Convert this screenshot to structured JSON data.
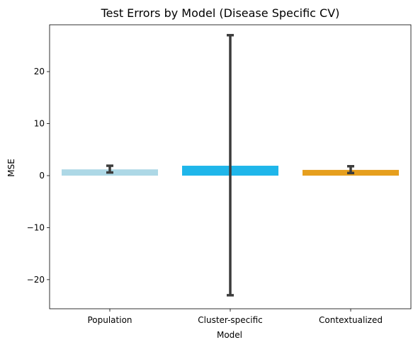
{
  "chart_data": {
    "type": "bar",
    "title": "Test Errors by Model (Disease Specific CV)",
    "xlabel": "Model",
    "ylabel": "MSE",
    "categories": [
      "Population",
      "Cluster-specific",
      "Contextualized"
    ],
    "values": [
      1.2,
      1.9,
      1.1
    ],
    "error_low": [
      0.6,
      -23.0,
      0.5
    ],
    "error_high": [
      1.9,
      27.0,
      1.8
    ],
    "colors": [
      "#add8e6",
      "#1fb6ea",
      "#e69f1e"
    ],
    "error_color": "#3c3c3c",
    "ylim": [
      -25.6,
      29.0
    ],
    "yticks": [
      -20,
      -10,
      0,
      10,
      20
    ],
    "ytick_labels": [
      "−20",
      "−10",
      "0",
      "10",
      "20"
    ],
    "grid": false,
    "legend": "none"
  }
}
